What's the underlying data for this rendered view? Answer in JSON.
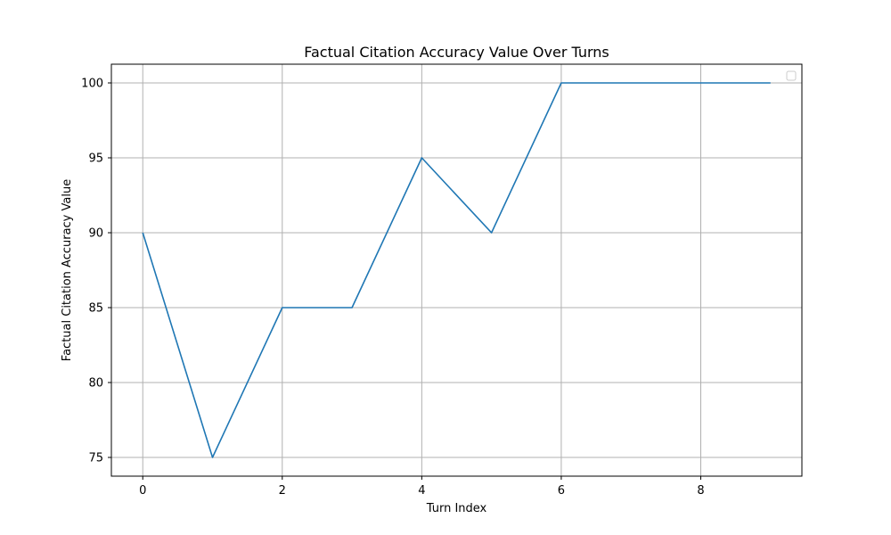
{
  "chart_data": {
    "type": "line",
    "title": "Factual Citation Accuracy Value Over Turns",
    "xlabel": "Turn Index",
    "ylabel": "Factual Citation Accuracy Value",
    "x": [
      0,
      1,
      2,
      3,
      4,
      5,
      6,
      7,
      8,
      9
    ],
    "series": [
      {
        "values": [
          90,
          75,
          85,
          85,
          95,
          90,
          100,
          100,
          100,
          100
        ],
        "color": "#1f77b4"
      }
    ],
    "xlim": [
      -0.45,
      9.45
    ],
    "ylim": [
      73.75,
      101.25
    ],
    "xticks": [
      0,
      2,
      4,
      6,
      8
    ],
    "yticks": [
      75,
      80,
      85,
      90,
      95,
      100
    ],
    "grid": true,
    "legend": {
      "placement": "upper right",
      "entries": []
    }
  }
}
